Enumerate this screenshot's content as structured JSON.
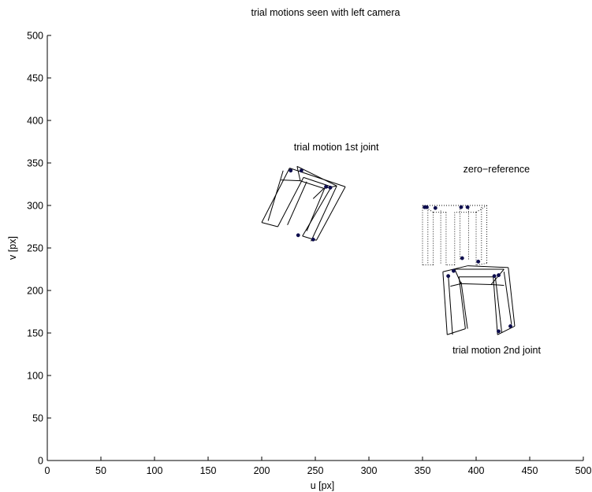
{
  "chart_data": {
    "type": "line",
    "title": "trial motions seen with left camera",
    "xlabel": "u [px]",
    "ylabel": "v [px]",
    "xlim": [
      0,
      500
    ],
    "ylim": [
      0,
      500
    ],
    "xticks": [
      0,
      50,
      100,
      150,
      200,
      250,
      300,
      350,
      400,
      450,
      500
    ],
    "yticks": [
      0,
      50,
      100,
      150,
      200,
      250,
      300,
      350,
      400,
      450,
      500
    ],
    "grid": false,
    "annotations": [
      {
        "text": "trial motion 1st joint",
        "x": 230,
        "y": 365
      },
      {
        "text": "zero−reference",
        "x": 388,
        "y": 339
      },
      {
        "text": "trial motion 2nd joint",
        "x": 378,
        "y": 126
      }
    ],
    "series": [
      {
        "style": "solid",
        "segments": [
          [
            [
              226,
              344
            ],
            [
              278,
              322
            ]
          ],
          [
            [
              278,
              322
            ],
            [
              251,
              259
            ]
          ],
          [
            [
              251,
              259
            ],
            [
              238,
              264
            ]
          ],
          [
            [
              238,
              264
            ],
            [
              265,
              322
            ]
          ],
          [
            [
              265,
              322
            ],
            [
              239,
              333
            ]
          ],
          [
            [
              239,
              333
            ],
            [
              215,
              275
            ]
          ],
          [
            [
              215,
              275
            ],
            [
              200,
              280
            ]
          ],
          [
            [
              200,
              280
            ],
            [
              226,
              344
            ]
          ],
          [
            [
              233,
              346
            ],
            [
              270,
              323
            ]
          ],
          [
            [
              270,
              323
            ],
            [
              246,
              258
            ]
          ],
          [
            [
              233,
              346
            ],
            [
              236,
              329
            ]
          ],
          [
            [
              236,
              329
            ],
            [
              258,
              320
            ]
          ],
          [
            [
              258,
              320
            ],
            [
              270,
              323
            ]
          ],
          [
            [
              218,
              330
            ],
            [
              236,
              329
            ]
          ],
          [
            [
              258,
              320
            ],
            [
              248,
              308
            ]
          ],
          [
            [
              220,
              341
            ],
            [
              206,
              282
            ]
          ],
          [
            [
              242,
              328
            ],
            [
              224,
              277
            ]
          ],
          [
            [
              260,
              324
            ],
            [
              242,
              270
            ]
          ]
        ],
        "markers": [
          [
            227,
            341
          ],
          [
            237,
            341
          ],
          [
            260,
            322
          ],
          [
            264,
            321
          ],
          [
            234,
            265
          ],
          [
            248,
            260
          ]
        ]
      },
      {
        "style": "dotted",
        "segments": [
          [
            [
              350,
              300
            ],
            [
              410,
              300
            ]
          ],
          [
            [
              410,
              300
            ],
            [
              410,
              232
            ]
          ],
          [
            [
              410,
              232
            ],
            [
              400,
              230
            ]
          ],
          [
            [
              400,
              230
            ],
            [
              400,
              292
            ]
          ],
          [
            [
              400,
              292
            ],
            [
              380,
              292
            ]
          ],
          [
            [
              380,
              292
            ],
            [
              380,
              230
            ]
          ],
          [
            [
              380,
              230
            ],
            [
              372,
              230
            ]
          ],
          [
            [
              372,
              230
            ],
            [
              372,
              292
            ]
          ],
          [
            [
              372,
              292
            ],
            [
              360,
              292
            ]
          ],
          [
            [
              360,
              292
            ],
            [
              360,
              230
            ]
          ],
          [
            [
              360,
              230
            ],
            [
              350,
              230
            ]
          ],
          [
            [
              350,
              230
            ],
            [
              350,
              300
            ]
          ],
          [
            [
              355,
              297
            ],
            [
              355,
              232
            ]
          ],
          [
            [
              367,
              294
            ],
            [
              367,
              232
            ]
          ],
          [
            [
              385,
              296
            ],
            [
              385,
              236
            ]
          ],
          [
            [
              393,
              296
            ],
            [
              393,
              236
            ]
          ],
          [
            [
              405,
              298
            ],
            [
              405,
              234
            ]
          ],
          [
            [
              350,
              300
            ],
            [
              360,
              292
            ]
          ],
          [
            [
              410,
              300
            ],
            [
              400,
              292
            ]
          ]
        ],
        "markers": [
          [
            352,
            298
          ],
          [
            354,
            298
          ],
          [
            362,
            297
          ],
          [
            386,
            298
          ],
          [
            392,
            298
          ],
          [
            387,
            238
          ],
          [
            402,
            234
          ]
        ]
      },
      {
        "style": "solid",
        "segments": [
          [
            [
              369,
              222
            ],
            [
              392,
              229
            ]
          ],
          [
            [
              392,
              229
            ],
            [
              430,
              227
            ]
          ],
          [
            [
              430,
              227
            ],
            [
              436,
              158
            ]
          ],
          [
            [
              436,
              158
            ],
            [
              420,
              148
            ]
          ],
          [
            [
              420,
              148
            ],
            [
              416,
              216
            ]
          ],
          [
            [
              416,
              216
            ],
            [
              384,
              216
            ]
          ],
          [
            [
              384,
              216
            ],
            [
              390,
              155
            ]
          ],
          [
            [
              390,
              155
            ],
            [
              373,
              148
            ]
          ],
          [
            [
              373,
              148
            ],
            [
              369,
              222
            ]
          ],
          [
            [
              380,
              225
            ],
            [
              426,
              225
            ]
          ],
          [
            [
              380,
              225
            ],
            [
              386,
              208
            ]
          ],
          [
            [
              386,
              208
            ],
            [
              414,
              207
            ]
          ],
          [
            [
              414,
              207
            ],
            [
              426,
              225
            ]
          ],
          [
            [
              386,
              208
            ],
            [
              376,
              205
            ]
          ],
          [
            [
              414,
              207
            ],
            [
              426,
              206
            ]
          ],
          [
            [
              374,
              218
            ],
            [
              378,
              148
            ]
          ],
          [
            [
              386,
              210
            ],
            [
              392,
              155
            ]
          ],
          [
            [
              418,
              215
            ],
            [
              424,
              150
            ]
          ],
          [
            [
              426,
              222
            ],
            [
              433,
              160
            ]
          ]
        ],
        "markers": [
          [
            374,
            217
          ],
          [
            379,
            223
          ],
          [
            417,
            217
          ],
          [
            421,
            218
          ],
          [
            432,
            158
          ],
          [
            421,
            152
          ]
        ]
      }
    ]
  }
}
